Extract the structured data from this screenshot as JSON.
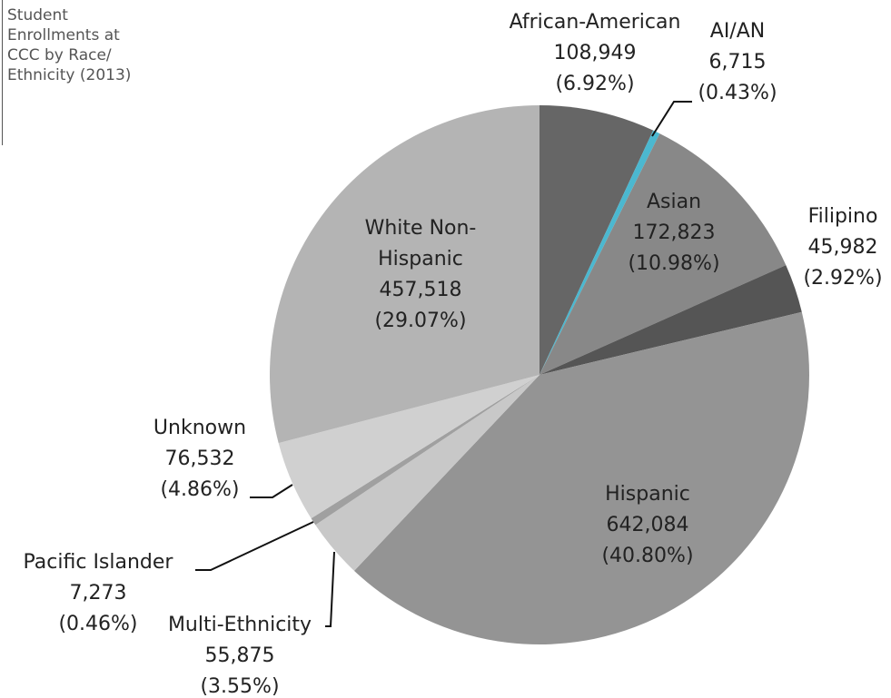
{
  "chart_data": {
    "type": "pie",
    "title": "Student Enrollments at CCC by Race/ Ethnicity (2013)",
    "categories": [
      "African-American",
      "AI/AN",
      "Asian",
      "Filipino",
      "Hispanic",
      "Multi-Ethnicity",
      "Pacific Islander",
      "Unknown",
      "White Non-Hispanic"
    ],
    "values": [
      108949,
      6715,
      172823,
      45982,
      642084,
      55875,
      7273,
      76532,
      457518
    ],
    "value_labels": [
      "108,949",
      "6,715",
      "172,823",
      "45,982",
      "642,084",
      "55,875",
      "7,273",
      "76,532",
      "457,518"
    ],
    "percentages": [
      6.92,
      0.43,
      10.98,
      2.92,
      40.8,
      3.55,
      0.46,
      4.86,
      29.07
    ],
    "percentage_labels": [
      "(6.92%)",
      "(0.43%)",
      "(10.98%)",
      "(2.92%)",
      "(40.80%)",
      "(3.55%)",
      "(0.46%)",
      "(4.86%)",
      "(29.07%)"
    ],
    "colors": [
      "#666666",
      "#4bb8d0",
      "#888888",
      "#555555",
      "#949494",
      "#c8c8c8",
      "#a0a0a0",
      "#d0d0d0",
      "#b4b4b4"
    ]
  }
}
